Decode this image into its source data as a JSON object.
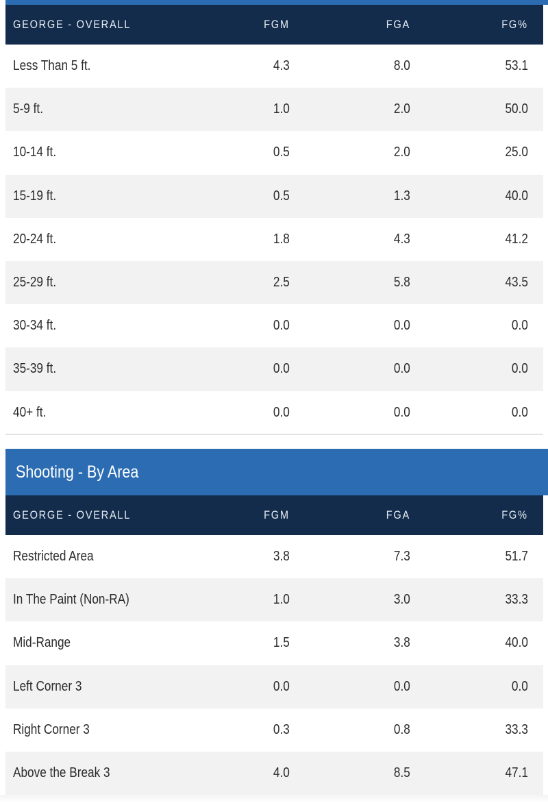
{
  "colors": {
    "section_bar": "#2c6cb2",
    "table_header": "#132c4c",
    "row_alt": "#f2f2f2"
  },
  "distance_table": {
    "columns": [
      "GEORGE - OVERALL",
      "FGM",
      "FGA",
      "FG%"
    ],
    "rows": [
      {
        "label": "Less Than 5 ft.",
        "fgm": "4.3",
        "fga": "8.0",
        "fgp": "53.1"
      },
      {
        "label": "5-9 ft.",
        "fgm": "1.0",
        "fga": "2.0",
        "fgp": "50.0"
      },
      {
        "label": "10-14 ft.",
        "fgm": "0.5",
        "fga": "2.0",
        "fgp": "25.0"
      },
      {
        "label": "15-19 ft.",
        "fgm": "0.5",
        "fga": "1.3",
        "fgp": "40.0"
      },
      {
        "label": "20-24 ft.",
        "fgm": "1.8",
        "fga": "4.3",
        "fgp": "41.2"
      },
      {
        "label": "25-29 ft.",
        "fgm": "2.5",
        "fga": "5.8",
        "fgp": "43.5"
      },
      {
        "label": "30-34 ft.",
        "fgm": "0.0",
        "fga": "0.0",
        "fgp": "0.0"
      },
      {
        "label": "35-39 ft.",
        "fgm": "0.0",
        "fga": "0.0",
        "fgp": "0.0"
      },
      {
        "label": "40+ ft.",
        "fgm": "0.0",
        "fga": "0.0",
        "fgp": "0.0"
      }
    ]
  },
  "area_section": {
    "title": "Shooting - By Area",
    "columns": [
      "GEORGE - OVERALL",
      "FGM",
      "FGA",
      "FG%"
    ],
    "rows": [
      {
        "label": "Restricted Area",
        "fgm": "3.8",
        "fga": "7.3",
        "fgp": "51.7"
      },
      {
        "label": "In The Paint (Non-RA)",
        "fgm": "1.0",
        "fga": "3.0",
        "fgp": "33.3"
      },
      {
        "label": "Mid-Range",
        "fgm": "1.5",
        "fga": "3.8",
        "fgp": "40.0"
      },
      {
        "label": "Left Corner 3",
        "fgm": "0.0",
        "fga": "0.0",
        "fgp": "0.0"
      },
      {
        "label": "Right Corner 3",
        "fgm": "0.3",
        "fga": "0.8",
        "fgp": "33.3"
      },
      {
        "label": "Above the Break 3",
        "fgm": "4.0",
        "fga": "8.5",
        "fgp": "47.1"
      }
    ]
  }
}
